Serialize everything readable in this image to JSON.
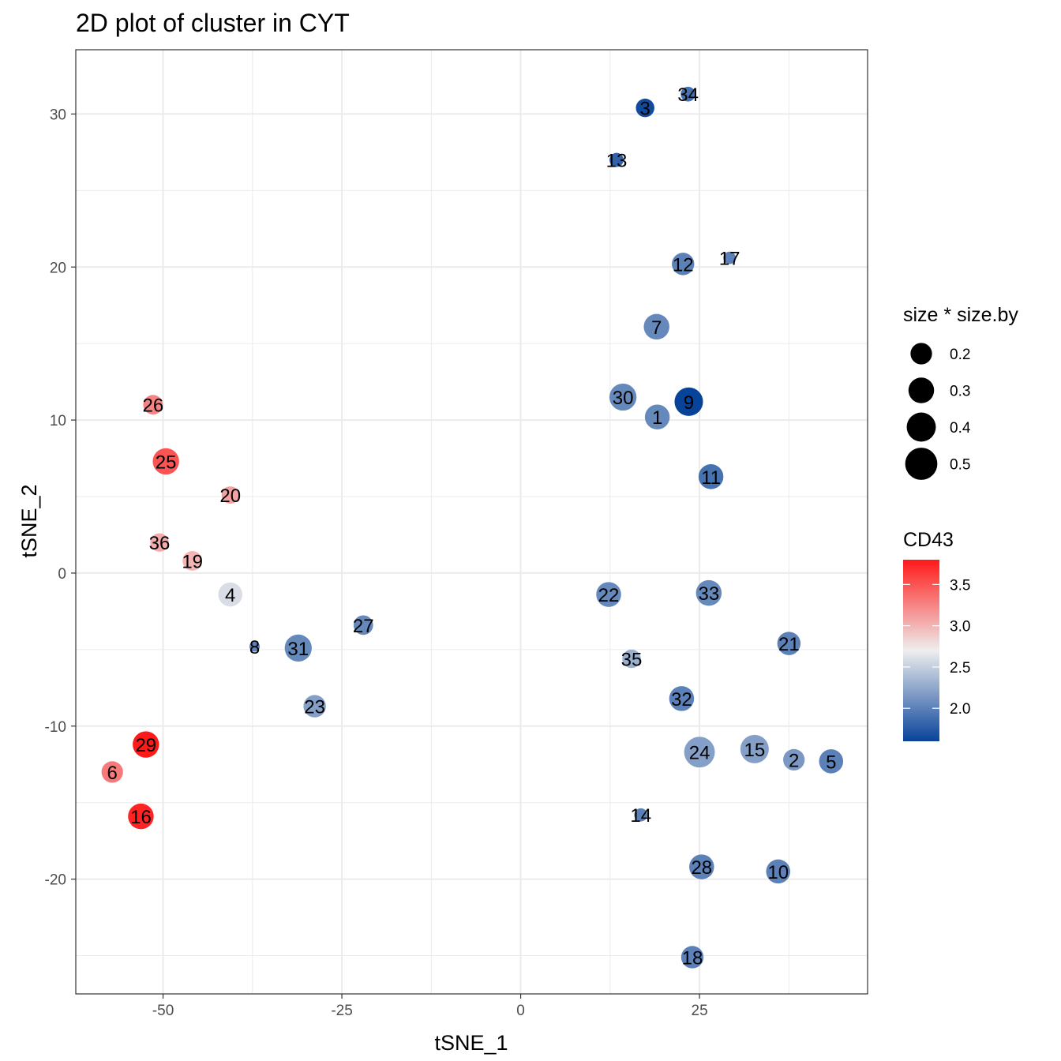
{
  "chart_data": {
    "type": "scatter",
    "title": "2D plot of cluster in CYT",
    "xlabel": "tSNE_1",
    "ylabel": "tSNE_2",
    "xlim": [
      -62.2,
      48.5
    ],
    "ylim": [
      -27.5,
      34.2
    ],
    "x_ticks": [
      -50,
      -25,
      0,
      25
    ],
    "x_tick_labels": [
      "-50",
      "-25",
      "0",
      "25"
    ],
    "y_ticks": [
      -20,
      -10,
      0,
      10,
      20,
      30
    ],
    "y_tick_labels": [
      "-20",
      "-10",
      "0",
      "10",
      "20",
      "30"
    ],
    "grid": true,
    "size_legend": {
      "title": "size * size.by",
      "values": [
        0.2,
        0.3,
        0.4,
        0.5
      ],
      "labels": [
        "0.2",
        "0.3",
        "0.4",
        "0.5"
      ]
    },
    "color_legend": {
      "title": "CD43",
      "range": [
        1.6,
        3.8
      ],
      "ticks": [
        2.0,
        2.5,
        3.0,
        3.5
      ],
      "tick_labels": [
        "2.0",
        "2.5",
        "3.0",
        "3.5"
      ],
      "colors": {
        "low": "#08439a",
        "mid": "#eeeeee",
        "high": "#ff1a1a"
      }
    },
    "points": [
      {
        "label": "1",
        "x": 19.1,
        "y": 10.2,
        "size": 0.28,
        "cd43": 2.05
      },
      {
        "label": "2",
        "x": 38.2,
        "y": -12.2,
        "size": 0.2,
        "cd43": 2.15
      },
      {
        "label": "3",
        "x": 17.4,
        "y": 30.4,
        "size": 0.14,
        "cd43": 1.65
      },
      {
        "label": "4",
        "x": -40.6,
        "y": -1.4,
        "size": 0.26,
        "cd43": 2.6
      },
      {
        "label": "5",
        "x": 43.4,
        "y": -12.3,
        "size": 0.26,
        "cd43": 2.0
      },
      {
        "label": "6",
        "x": -57.1,
        "y": -13.0,
        "size": 0.2,
        "cd43": 3.3
      },
      {
        "label": "7",
        "x": 19.0,
        "y": 16.1,
        "size": 0.3,
        "cd43": 2.05
      },
      {
        "label": "8",
        "x": -37.2,
        "y": -4.8,
        "size": 0.03,
        "cd43": 2.0
      },
      {
        "label": "9",
        "x": 23.5,
        "y": 11.2,
        "size": 0.38,
        "cd43": 1.6
      },
      {
        "label": "10",
        "x": 36.0,
        "y": -19.5,
        "size": 0.26,
        "cd43": 2.0
      },
      {
        "label": "11",
        "x": 26.6,
        "y": 6.3,
        "size": 0.28,
        "cd43": 1.9
      },
      {
        "label": "12",
        "x": 22.7,
        "y": 20.2,
        "size": 0.22,
        "cd43": 2.0
      },
      {
        "label": "13",
        "x": 13.4,
        "y": 27.0,
        "size": 0.07,
        "cd43": 1.8
      },
      {
        "label": "14",
        "x": 16.8,
        "y": -15.8,
        "size": 0.06,
        "cd43": 2.0
      },
      {
        "label": "15",
        "x": 32.7,
        "y": -11.5,
        "size": 0.38,
        "cd43": 2.2
      },
      {
        "label": "16",
        "x": -53.1,
        "y": -15.9,
        "size": 0.3,
        "cd43": 3.75
      },
      {
        "label": "17",
        "x": 29.2,
        "y": 20.6,
        "size": 0.05,
        "cd43": 2.0
      },
      {
        "label": "18",
        "x": 24.0,
        "y": -25.1,
        "size": 0.22,
        "cd43": 2.0
      },
      {
        "label": "19",
        "x": -45.9,
        "y": 0.8,
        "size": 0.16,
        "cd43": 3.0
      },
      {
        "label": "20",
        "x": -40.6,
        "y": 5.1,
        "size": 0.12,
        "cd43": 3.1
      },
      {
        "label": "21",
        "x": 37.5,
        "y": -4.6,
        "size": 0.24,
        "cd43": 2.0
      },
      {
        "label": "22",
        "x": 12.3,
        "y": -1.4,
        "size": 0.28,
        "cd43": 2.05
      },
      {
        "label": "23",
        "x": -28.8,
        "y": -8.7,
        "size": 0.22,
        "cd43": 2.2
      },
      {
        "label": "24",
        "x": 25.0,
        "y": -11.7,
        "size": 0.45,
        "cd43": 2.2
      },
      {
        "label": "25",
        "x": -49.6,
        "y": 7.3,
        "size": 0.32,
        "cd43": 3.5
      },
      {
        "label": "26",
        "x": -51.4,
        "y": 11.0,
        "size": 0.16,
        "cd43": 3.25
      },
      {
        "label": "27",
        "x": -22.0,
        "y": -3.4,
        "size": 0.16,
        "cd43": 2.05
      },
      {
        "label": "28",
        "x": 25.3,
        "y": -19.2,
        "size": 0.28,
        "cd43": 2.0
      },
      {
        "label": "29",
        "x": -52.4,
        "y": -11.2,
        "size": 0.32,
        "cd43": 3.8
      },
      {
        "label": "30",
        "x": 14.3,
        "y": 11.5,
        "size": 0.34,
        "cd43": 2.05
      },
      {
        "label": "31",
        "x": -31.1,
        "y": -4.9,
        "size": 0.34,
        "cd43": 2.05
      },
      {
        "label": "32",
        "x": 22.5,
        "y": -8.2,
        "size": 0.28,
        "cd43": 2.0
      },
      {
        "label": "33",
        "x": 26.3,
        "y": -1.3,
        "size": 0.3,
        "cd43": 2.05
      },
      {
        "label": "34",
        "x": 23.4,
        "y": 31.3,
        "size": 0.08,
        "cd43": 1.9
      },
      {
        "label": "35",
        "x": 15.5,
        "y": -5.6,
        "size": 0.14,
        "cd43": 2.3
      },
      {
        "label": "36",
        "x": -50.5,
        "y": 2.0,
        "size": 0.14,
        "cd43": 3.05
      }
    ]
  }
}
